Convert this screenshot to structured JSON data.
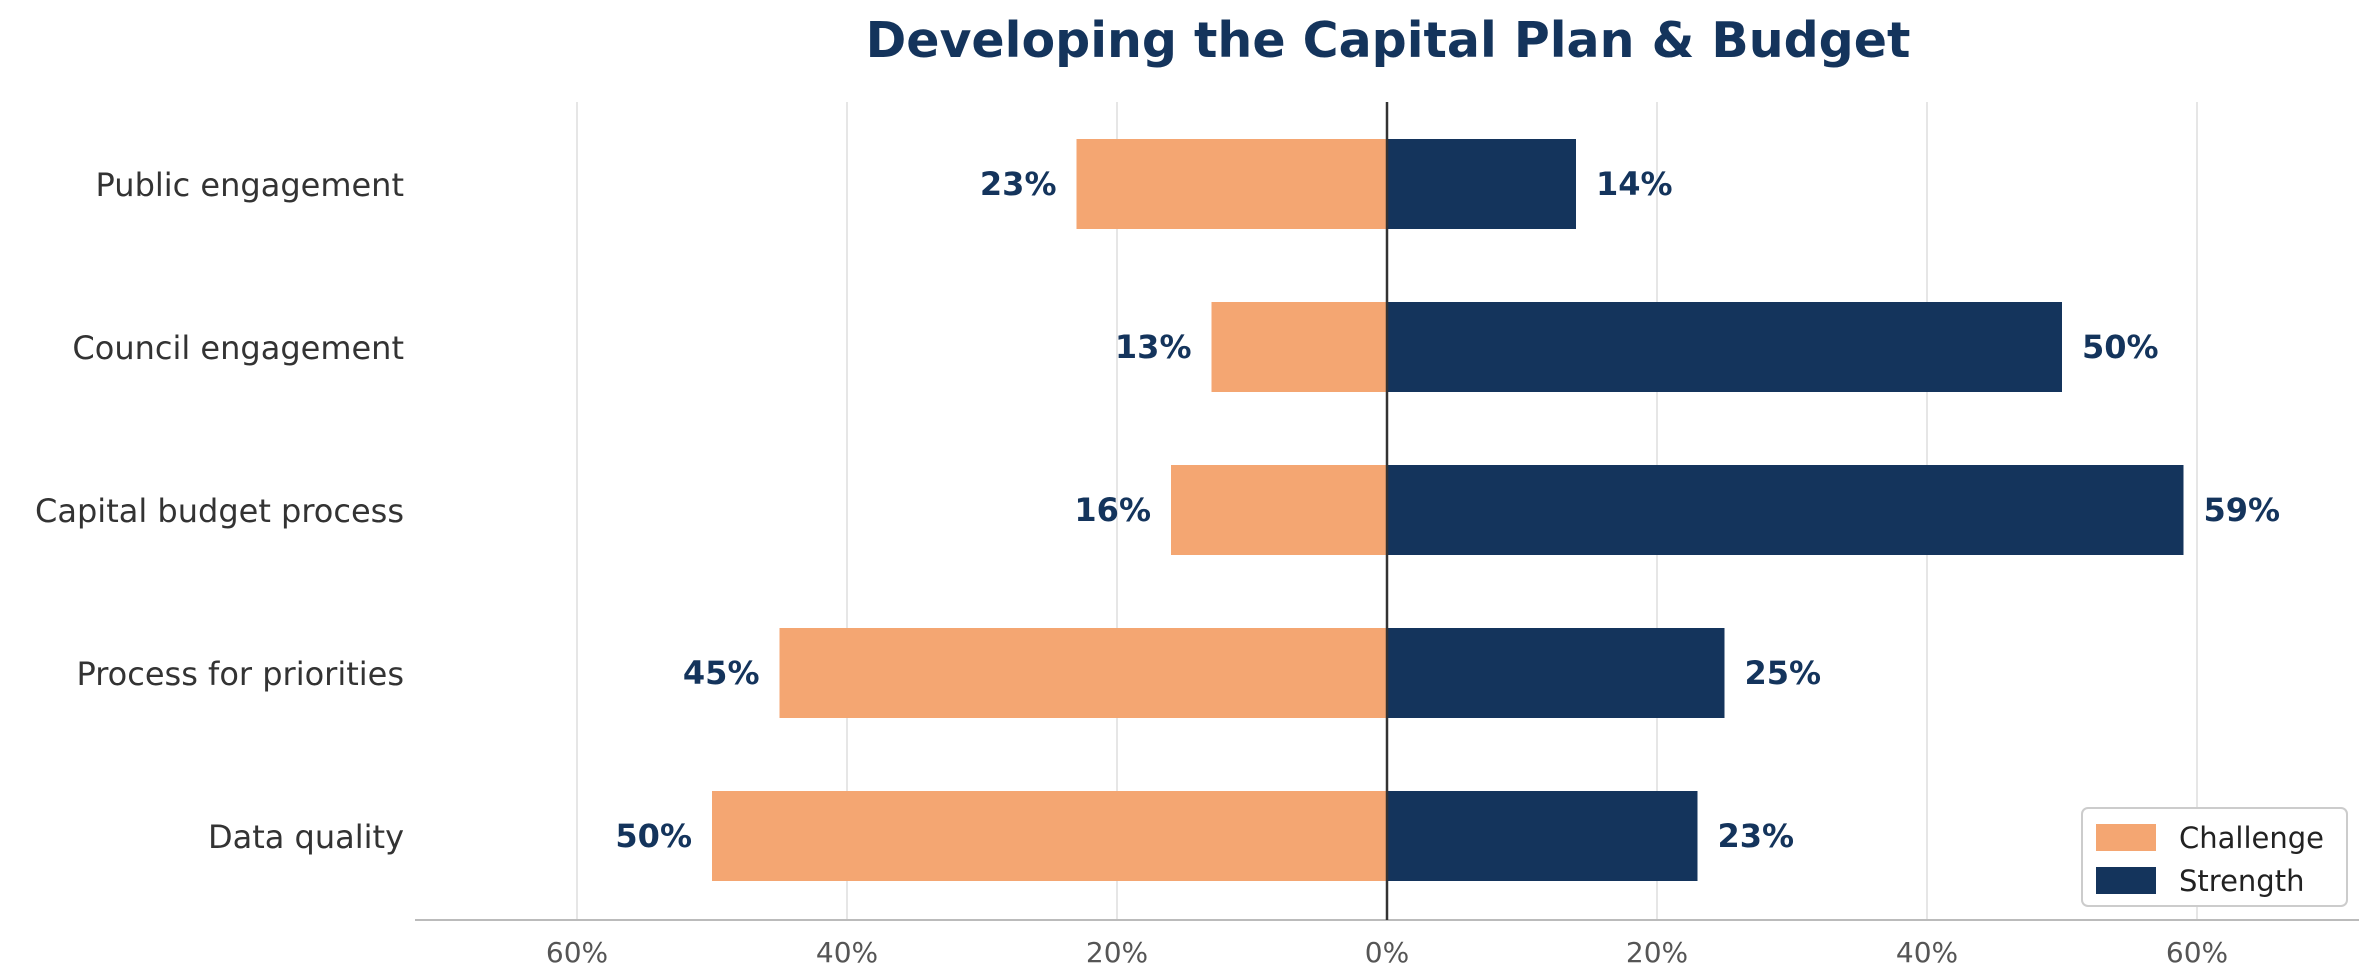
{
  "chart_data": {
    "type": "bar",
    "orientation": "horizontal-diverging",
    "title": "Developing the Capital Plan & Budget",
    "categories": [
      "Public engagement",
      "Council engagement",
      "Capital budget process",
      "Process for priorities",
      "Data quality"
    ],
    "series": [
      {
        "name": "Challenge",
        "values": [
          23,
          13,
          16,
          45,
          50
        ],
        "color": "#f4a672",
        "direction": "left"
      },
      {
        "name": "Strength",
        "values": [
          14,
          50,
          59,
          25,
          23
        ],
        "color": "#14345c",
        "direction": "right"
      }
    ],
    "data_labels": {
      "Challenge": [
        "23%",
        "13%",
        "16%",
        "45%",
        "50%"
      ],
      "Strength": [
        "14%",
        "50%",
        "59%",
        "25%",
        "23%"
      ]
    },
    "xlim": [
      -72,
      72
    ],
    "xticks": [
      -60,
      -40,
      -20,
      0,
      20,
      40,
      60
    ],
    "xtick_labels": [
      "60%",
      "40%",
      "20%",
      "0%",
      "20%",
      "40%",
      "60%"
    ],
    "grid": "vertical",
    "legend": "bottom-right",
    "colors": {
      "title": "#14345c",
      "zero_line": "#333333",
      "grid": "#dddddd",
      "axis": "#bbbbbb"
    }
  }
}
